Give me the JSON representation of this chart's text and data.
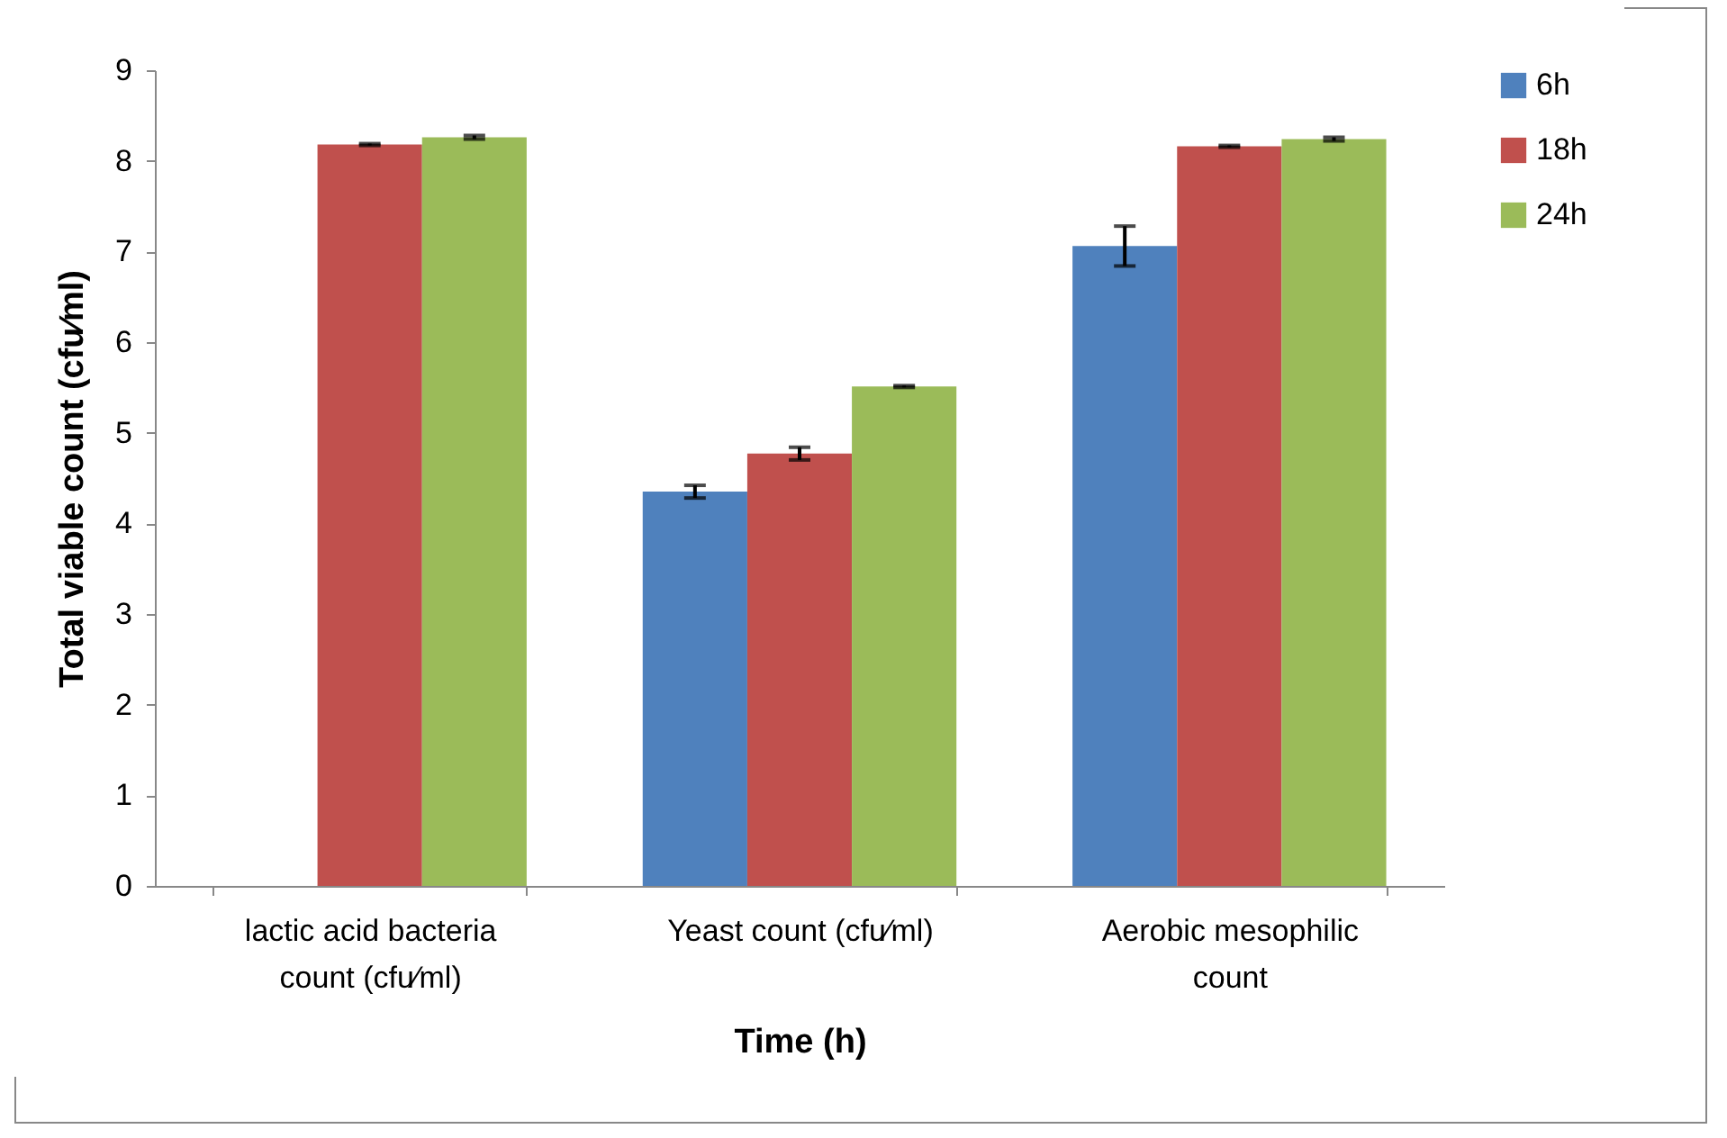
{
  "chart_data": {
    "type": "bar",
    "xlabel": "Time (h)",
    "ylabel": "Total viable count (cfu⁄ml)",
    "categories": [
      "lactic acid bacteria count (cfu⁄ml)",
      "Yeast count (cfu⁄ml)",
      "Aerobic mesophilic count"
    ],
    "series": [
      {
        "name": "6h",
        "color": "#4f81bd",
        "values": [
          0,
          4.35,
          7.06
        ],
        "errors": [
          null,
          0.07,
          0.22
        ]
      },
      {
        "name": "18h",
        "color": "#c0504d",
        "values": [
          8.18,
          4.77,
          8.16
        ],
        "errors": [
          0.01,
          0.07,
          0.01
        ]
      },
      {
        "name": "24h",
        "color": "#9bbb59",
        "values": [
          8.26,
          5.51,
          8.24
        ],
        "errors": [
          0.02,
          0.01,
          0.02
        ]
      }
    ],
    "ylim": [
      0,
      9
    ],
    "yticks": [
      0,
      1,
      2,
      3,
      4,
      5,
      6,
      7,
      8,
      9
    ],
    "grid": false,
    "legend": "right"
  }
}
